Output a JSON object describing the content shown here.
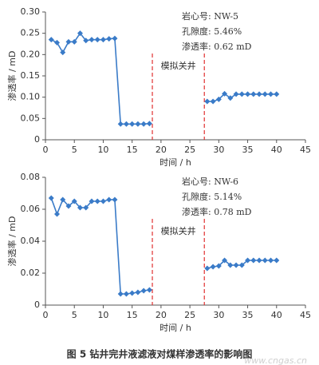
{
  "chart_data": [
    {
      "type": "line",
      "y_label": "渗透率 / mD",
      "x_label": "时间 / h",
      "xlim": [
        0,
        45
      ],
      "xticks": [
        0,
        5,
        10,
        15,
        20,
        25,
        30,
        35,
        40,
        45
      ],
      "ylim": [
        0,
        0.3
      ],
      "yticks": [
        0,
        0.05,
        {
          "value": 0.1,
          "label": "0.10"
        },
        0.15,
        {
          "value": 0.2,
          "label": "0.20"
        },
        0.25,
        {
          "value": 0.3,
          "label": "0.30"
        }
      ],
      "annotations": [
        "岩心号:  NW-5",
        "孔隙度:  5.46%",
        "渗透率:  0.62 mD"
      ],
      "shut_in_label": "模拟关井",
      "vlines": [
        18.5,
        27.5
      ],
      "vline_color": "#e03030",
      "x": [
        1,
        2,
        3,
        4,
        5,
        6,
        7,
        8,
        9,
        10,
        11,
        12,
        13,
        14,
        15,
        16,
        17,
        18,
        19,
        20,
        21,
        22,
        23,
        24,
        25,
        26,
        27,
        28,
        29,
        30,
        31,
        32,
        33,
        34,
        35,
        36,
        37,
        38,
        39,
        40
      ],
      "series": [
        {
          "color": "#3a7bc8",
          "values": [
            0.235,
            0.228,
            0.205,
            0.23,
            0.23,
            0.25,
            0.233,
            0.235,
            0.235,
            0.235,
            0.237,
            0.238,
            0.037,
            0.037,
            0.037,
            0.037,
            0.037,
            0.038,
            null,
            null,
            null,
            null,
            null,
            null,
            null,
            null,
            null,
            0.09,
            0.09,
            0.095,
            0.108,
            0.098,
            0.107,
            0.107,
            0.107,
            0.107,
            0.107,
            0.107,
            0.107,
            0.107
          ]
        }
      ]
    },
    {
      "type": "line",
      "y_label": "渗透率 / mD",
      "x_label": "时间 / h",
      "xlim": [
        0,
        45
      ],
      "xticks": [
        0,
        5,
        10,
        15,
        20,
        25,
        30,
        35,
        40,
        45
      ],
      "ylim": [
        0,
        0.08
      ],
      "yticks": [
        0,
        0.02,
        0.04,
        0.06,
        0.08
      ],
      "annotations": [
        "岩心号:  NW-6",
        "孔隙度:  5.14%",
        "渗透率:  0.78 mD"
      ],
      "shut_in_label": "模拟关井",
      "vlines": [
        18.5,
        27.5
      ],
      "vline_color": "#e03030",
      "x": [
        1,
        2,
        3,
        4,
        5,
        6,
        7,
        8,
        9,
        10,
        11,
        12,
        13,
        14,
        15,
        16,
        17,
        18,
        19,
        20,
        21,
        22,
        23,
        24,
        25,
        26,
        27,
        28,
        29,
        30,
        31,
        32,
        33,
        34,
        35,
        36,
        37,
        38,
        39,
        40
      ],
      "series": [
        {
          "color": "#3a7bc8",
          "values": [
            0.067,
            0.057,
            0.066,
            0.062,
            0.065,
            0.061,
            0.061,
            0.065,
            0.065,
            0.065,
            0.066,
            0.066,
            0.007,
            0.007,
            0.0075,
            0.008,
            0.009,
            0.0095,
            null,
            null,
            null,
            null,
            null,
            null,
            null,
            null,
            null,
            0.023,
            0.024,
            0.0245,
            0.028,
            0.025,
            0.025,
            0.025,
            0.028,
            0.028,
            0.028,
            0.028,
            0.028,
            0.028
          ]
        }
      ]
    }
  ],
  "caption": "图 5   钻井完井液滤液对煤样渗透率的影响图",
  "watermark": "www.cngas.cn"
}
